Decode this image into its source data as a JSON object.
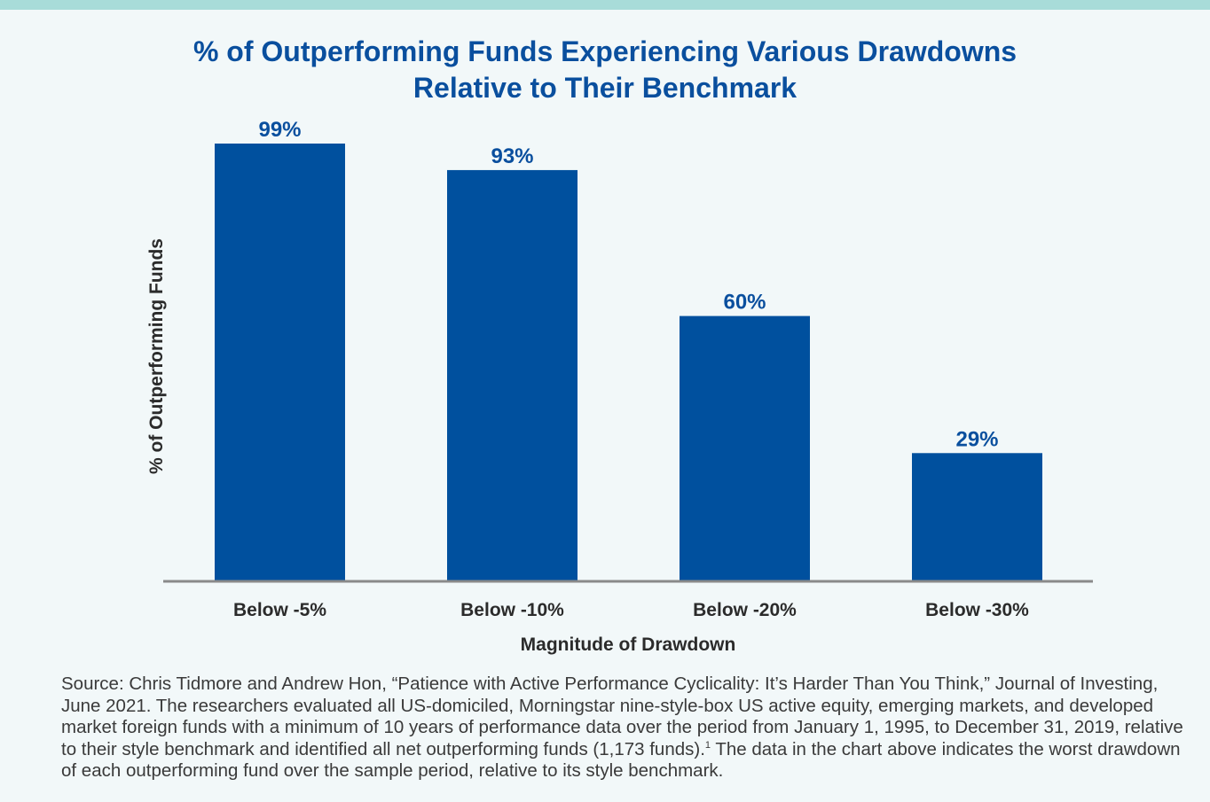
{
  "colors": {
    "stripe": "#a8dcd9",
    "bar": "#00509e",
    "title": "#0a4f9e",
    "axis": "#8a8a8a",
    "text": "#2b2b2b"
  },
  "title_line1": "% of Outperforming Funds Experiencing Various Drawdowns",
  "title_line2": "Relative to Their Benchmark",
  "chart_data": {
    "type": "bar",
    "title": "% of Outperforming Funds Experiencing Various Drawdowns Relative to Their Benchmark",
    "categories": [
      "Below -5%",
      "Below -10%",
      "Below -20%",
      "Below -30%"
    ],
    "values": [
      99,
      93,
      60,
      29
    ],
    "value_labels": [
      "99%",
      "93%",
      "60%",
      "29%"
    ],
    "xlabel": "Magnitude of Drawdown",
    "ylabel": "% of Outperforming Funds",
    "ylim": [
      0,
      100
    ],
    "grid": false,
    "legend": "none"
  },
  "footnote": {
    "text_before": "Source: Chris Tidmore and Andrew Hon, “Patience with Active Performance Cyclicality: It’s Harder Than You Think,” Journal of Investing, June 2021. The researchers evaluated all US-domiciled, Morningstar nine-style-box US active equity, emerging markets, and developed market foreign funds with a minimum of 10 years of performance data over the period from January 1, 1995, to December 31, 2019, relative to their style benchmark and identified all net outperforming funds (1,173 funds).",
    "superscript": "1",
    "text_after": " The data in the chart above indicates the worst drawdown of each outperforming fund over the sample period, relative to its style benchmark."
  }
}
